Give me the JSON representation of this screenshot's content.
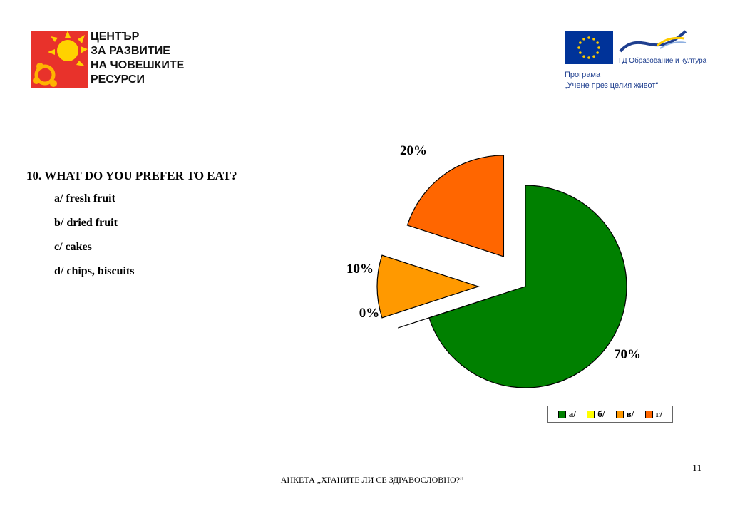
{
  "header": {
    "org_lines": [
      "ЦЕНТЪР",
      "ЗА РАЗВИТИЕ",
      "НА ЧОВЕШКИТЕ",
      "РЕСУРСИ"
    ],
    "eu_dg_text": "ГД Образование и култура",
    "programme_line1": "Програма",
    "programme_line2": "„Учене през целия живот“"
  },
  "question": {
    "title": "10. WHAT DO YOU PREFER TO EAT?",
    "options": [
      "a/ fresh fruit",
      "b/ dried fruit",
      "c/ cakes",
      "d/ chips, biscuits"
    ]
  },
  "chart_data": {
    "type": "pie",
    "exploded": true,
    "start": "12 o'clock",
    "direction": "clockwise",
    "categories": [
      "а/",
      "б/",
      "в/",
      "г/"
    ],
    "values": [
      70,
      0,
      10,
      20
    ],
    "labels": [
      "70%",
      "0%",
      "10%",
      "20%"
    ],
    "colors": [
      "#008000",
      "#ffff00",
      "#ff9900",
      "#ff6600"
    ],
    "legend_position": "bottom-right"
  },
  "footer": {
    "page_number": "11",
    "survey_title": "АНКЕТА „ХРАНИТЕ ЛИ СЕ ЗДРАВОСЛОВНО?”"
  }
}
